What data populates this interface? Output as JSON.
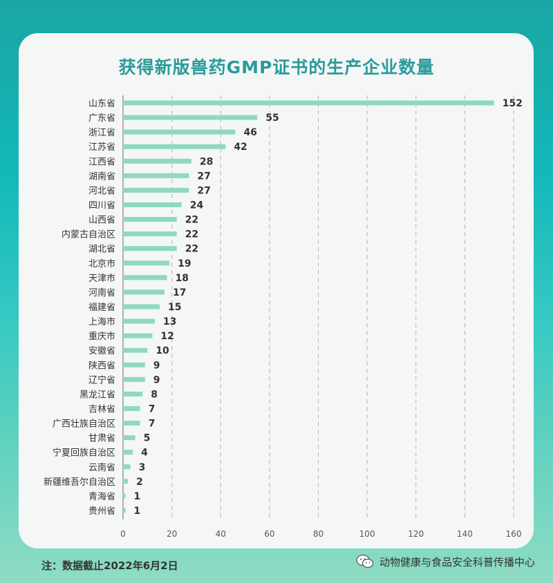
{
  "colors": {
    "bar": "#8fd8c4",
    "title": "#2a9b9a",
    "grid": "#b4b4b4",
    "label": "#333333"
  },
  "footer": {
    "note": "注：数据截止2022年6月2日",
    "brand": "动物健康与食品安全科普传播中心",
    "brand_icon": "wechat-icon"
  },
  "chart_data": {
    "type": "bar",
    "orientation": "horizontal",
    "title": "获得新版兽药GMP证书的生产企业数量",
    "categories": [
      "山东省",
      "广东省",
      "浙江省",
      "江苏省",
      "江西省",
      "湖南省",
      "河北省",
      "四川省",
      "山西省",
      "内蒙古自治区",
      "湖北省",
      "北京市",
      "天津市",
      "河南省",
      "福建省",
      "上海市",
      "重庆市",
      "安徽省",
      "陕西省",
      "辽宁省",
      "黑龙江省",
      "吉林省",
      "广西壮族自治区",
      "甘肃省",
      "宁夏回族自治区",
      "云南省",
      "新疆维吾尔自治区",
      "青海省",
      "贵州省"
    ],
    "values": [
      152,
      55,
      46,
      42,
      28,
      27,
      27,
      24,
      22,
      22,
      22,
      19,
      18,
      17,
      15,
      13,
      12,
      10,
      9,
      9,
      8,
      7,
      7,
      5,
      4,
      3,
      2,
      1,
      1
    ],
    "xlim": [
      0,
      160
    ],
    "xticks": [
      0,
      20,
      40,
      60,
      80,
      100,
      120,
      140,
      160
    ],
    "grid": "vertical dashed",
    "data_labels": true
  }
}
